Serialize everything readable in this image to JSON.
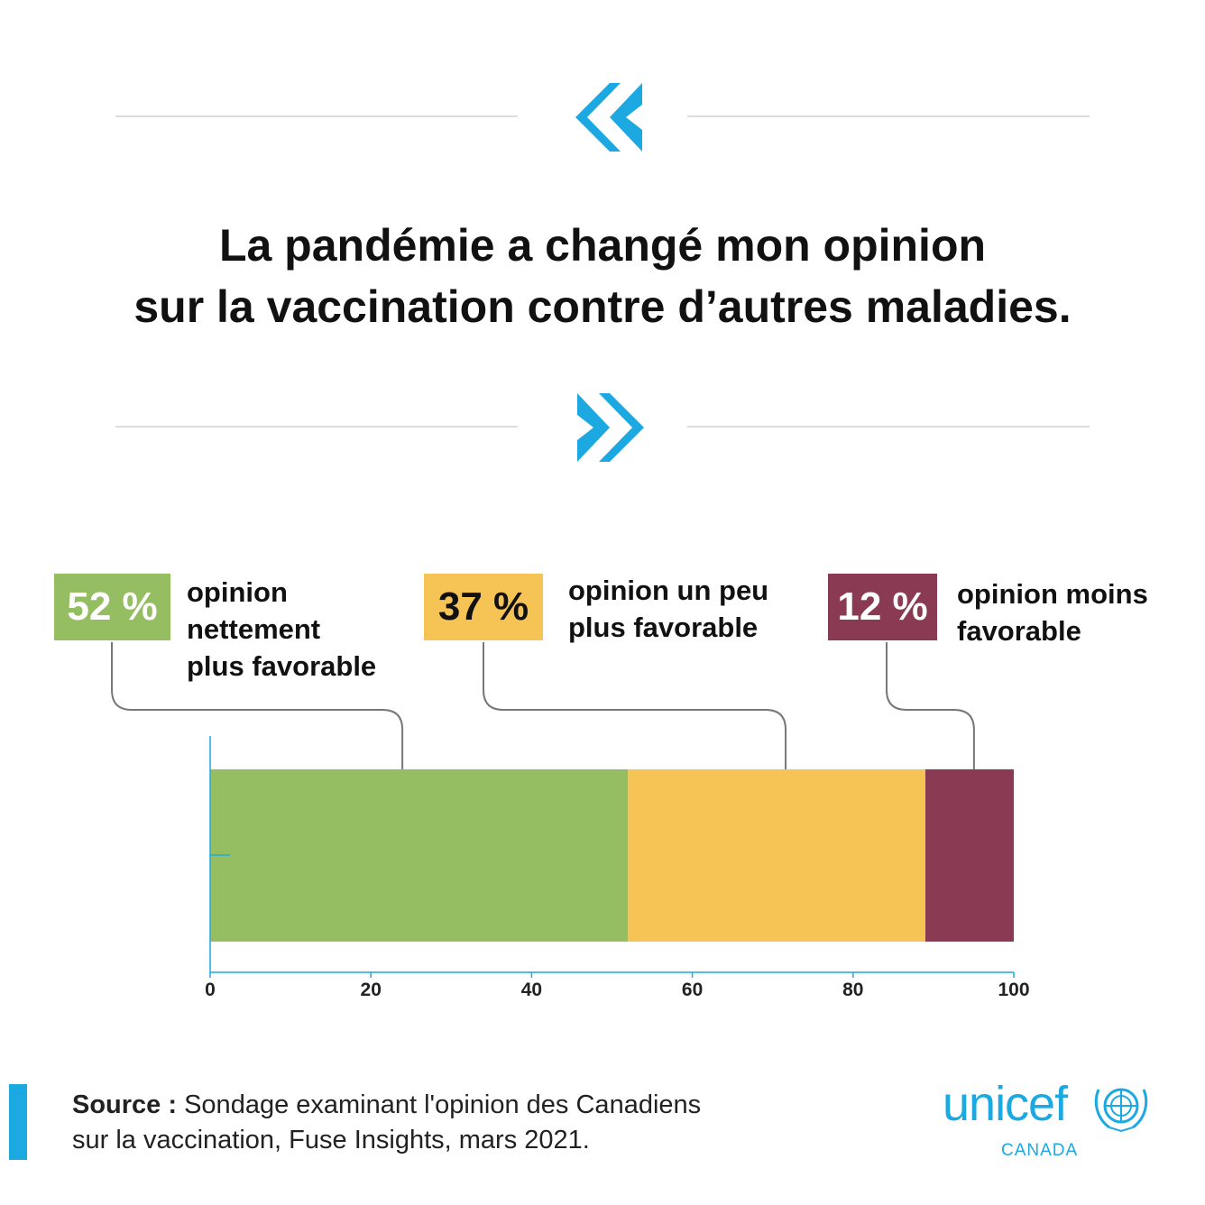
{
  "headline": {
    "line1": "La pandémie a changé mon opinion",
    "line2": "sur la vaccination contre d’autres maladies."
  },
  "colors": {
    "accent": "#1ca9e1",
    "green": "#95bd62",
    "yellow": "#f6c454",
    "maroon": "#8a3a52"
  },
  "callouts": [
    {
      "pct": "52 %",
      "label_lines": [
        "opinion",
        "nettement",
        "plus favorable"
      ]
    },
    {
      "pct": "37 %",
      "label_lines": [
        "opinion un peu",
        "plus favorable"
      ]
    },
    {
      "pct": "12 %",
      "label_lines": [
        "opinion moins",
        "favorable"
      ]
    }
  ],
  "chart_data": {
    "type": "bar",
    "orientation": "horizontal-stacked",
    "title": "La pandémie a changé mon opinion sur la vaccination contre d’autres maladies.",
    "xlabel": "",
    "ylabel": "",
    "xlim": [
      0,
      100
    ],
    "ticks": [
      0,
      20,
      40,
      60,
      80,
      100
    ],
    "series": [
      {
        "name": "opinion nettement plus favorable",
        "value": 52,
        "color": "#95bd62"
      },
      {
        "name": "opinion un peu plus favorable",
        "value": 37,
        "color": "#f6c454"
      },
      {
        "name": "opinion moins favorable",
        "value": 12,
        "color": "#8a3a52"
      }
    ]
  },
  "source": {
    "label": "Source :",
    "text_line1": " Sondage examinant l'opinion des Canadiens",
    "text_line2": "sur la vaccination, Fuse Insights, mars 2021."
  },
  "logo": {
    "wordmark": "unicef",
    "sub": "CANADA"
  }
}
